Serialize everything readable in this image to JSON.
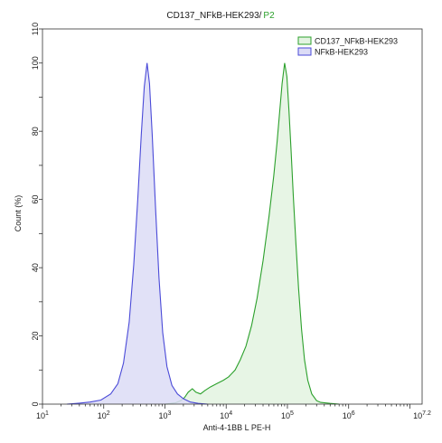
{
  "chart_data": {
    "type": "area",
    "title_main": "CD137_NFkB-HEK293",
    "title_sep": "/",
    "title_gate": "P2",
    "xlabel": "Anti-4-1BB L PE-H",
    "ylabel": "Count (%)",
    "x_scale": "log10",
    "xlim": [
      10,
      15848932
    ],
    "ylim": [
      0,
      110
    ],
    "x_ticks": [
      {
        "value": 10,
        "base": "10",
        "exp": "1"
      },
      {
        "value": 100,
        "base": "10",
        "exp": "2"
      },
      {
        "value": 1000,
        "base": "10",
        "exp": "3"
      },
      {
        "value": 10000,
        "base": "10",
        "exp": "4"
      },
      {
        "value": 100000,
        "base": "10",
        "exp": "5"
      },
      {
        "value": 1000000,
        "base": "10",
        "exp": "6"
      },
      {
        "value": 15848932,
        "base": "10",
        "exp": "7.2"
      }
    ],
    "y_ticks": [
      "0",
      "20",
      "40",
      "60",
      "80",
      "100"
    ],
    "y_tick_values": [
      0,
      10,
      20,
      30,
      40,
      50,
      60,
      70,
      80,
      90,
      100,
      110
    ],
    "y_tick_labels": [
      "0",
      "",
      "20",
      "",
      "40",
      "",
      "60",
      "",
      "80",
      "",
      "100",
      "110"
    ],
    "legend_placement": "top-right",
    "grid": false,
    "series": [
      {
        "name": "CD137_NFkB-HEK293",
        "color": "#2ca02c",
        "fill": "#e3f3e1",
        "points": [
          [
            1000,
            0
          ],
          [
            1500,
            0.4
          ],
          [
            1800,
            1
          ],
          [
            2100,
            2
          ],
          [
            2400,
            3.5
          ],
          [
            2800,
            4.5
          ],
          [
            3200,
            3.5
          ],
          [
            3800,
            3
          ],
          [
            4500,
            4
          ],
          [
            5500,
            5
          ],
          [
            7000,
            6
          ],
          [
            9000,
            7
          ],
          [
            11000,
            8
          ],
          [
            14000,
            10
          ],
          [
            17000,
            13
          ],
          [
            21000,
            17
          ],
          [
            26000,
            23
          ],
          [
            32000,
            31
          ],
          [
            40000,
            42
          ],
          [
            50000,
            55
          ],
          [
            60000,
            67
          ],
          [
            68000,
            77
          ],
          [
            75000,
            86
          ],
          [
            82000,
            94
          ],
          [
            90000,
            100
          ],
          [
            98000,
            96
          ],
          [
            106000,
            86
          ],
          [
            115000,
            74
          ],
          [
            125000,
            61
          ],
          [
            138000,
            47
          ],
          [
            152000,
            34
          ],
          [
            170000,
            22
          ],
          [
            190000,
            13
          ],
          [
            215000,
            7
          ],
          [
            250000,
            3
          ],
          [
            300000,
            1
          ],
          [
            350000,
            0.5
          ],
          [
            500000,
            0.2
          ],
          [
            700000,
            0
          ]
        ]
      },
      {
        "name": "NFkB-HEK293",
        "color": "#4a4ad8",
        "fill": "#dcdcf6",
        "points": [
          [
            25,
            0
          ],
          [
            40,
            0.3
          ],
          [
            60,
            0.6
          ],
          [
            90,
            1.2
          ],
          [
            130,
            3
          ],
          [
            170,
            6
          ],
          [
            210,
            12
          ],
          [
            260,
            24
          ],
          [
            310,
            41
          ],
          [
            360,
            60
          ],
          [
            410,
            79
          ],
          [
            460,
            93
          ],
          [
            510,
            100
          ],
          [
            560,
            94
          ],
          [
            620,
            79
          ],
          [
            700,
            58
          ],
          [
            800,
            37
          ],
          [
            920,
            21
          ],
          [
            1080,
            11
          ],
          [
            1300,
            5.5
          ],
          [
            1600,
            3
          ],
          [
            2000,
            1.6
          ],
          [
            2600,
            0.6
          ],
          [
            3500,
            0.2
          ],
          [
            5000,
            0
          ]
        ]
      }
    ]
  }
}
